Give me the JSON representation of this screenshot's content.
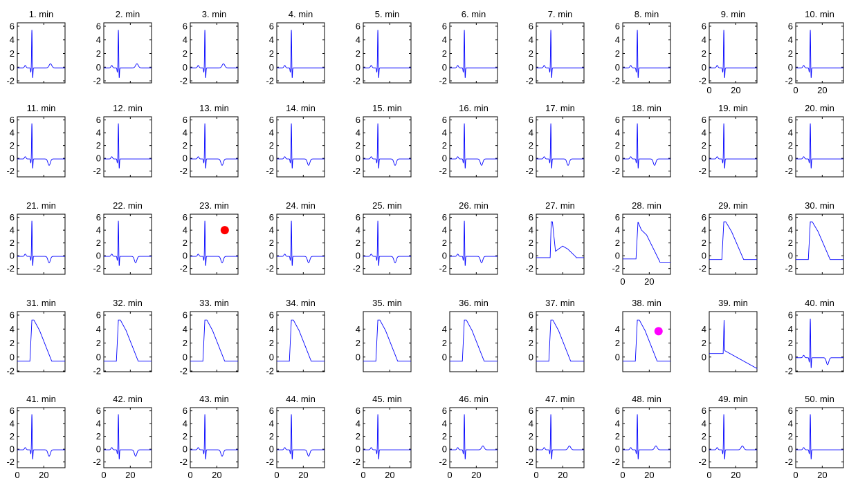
{
  "chart_data": {
    "type": "line",
    "layout": {
      "rows": 5,
      "cols": 10
    },
    "series_color": "#0000ff",
    "x_ticks": [
      0,
      20
    ],
    "xlim": [
      0,
      36
    ],
    "panels": [
      {
        "title": "1. min",
        "profile": "narrow",
        "tw": "up",
        "xticks": false
      },
      {
        "title": "2. min",
        "profile": "narrow",
        "tw": "up",
        "xticks": false
      },
      {
        "title": "3. min",
        "profile": "narrow",
        "tw": "up",
        "xticks": false
      },
      {
        "title": "4. min",
        "profile": "narrow",
        "tw": "flat",
        "xticks": false
      },
      {
        "title": "5. min",
        "profile": "narrow",
        "tw": "flat",
        "xticks": false
      },
      {
        "title": "6. min",
        "profile": "narrow",
        "tw": "flat",
        "xticks": false
      },
      {
        "title": "7. min",
        "profile": "narrow",
        "tw": "flat",
        "xticks": false
      },
      {
        "title": "8. min",
        "profile": "narrow",
        "tw": "flat",
        "xticks": false
      },
      {
        "title": "9. min",
        "profile": "narrow",
        "tw": "flat",
        "xticks": true
      },
      {
        "title": "10. min",
        "profile": "narrow",
        "tw": "flat",
        "xticks": true
      },
      {
        "title": "11. min",
        "profile": "narrow",
        "tw": "down",
        "xticks": false
      },
      {
        "title": "12. min",
        "profile": "narrow",
        "tw": "flat",
        "xticks": false
      },
      {
        "title": "13. min",
        "profile": "narrow",
        "tw": "down",
        "xticks": false
      },
      {
        "title": "14. min",
        "profile": "narrow",
        "tw": "down",
        "xticks": false
      },
      {
        "title": "15. min",
        "profile": "narrow",
        "tw": "down",
        "xticks": false
      },
      {
        "title": "16. min",
        "profile": "narrow",
        "tw": "down",
        "xticks": false
      },
      {
        "title": "17. min",
        "profile": "narrow",
        "tw": "down",
        "xticks": false
      },
      {
        "title": "18. min",
        "profile": "narrow",
        "tw": "down",
        "xticks": false
      },
      {
        "title": "19. min",
        "profile": "narrow",
        "tw": "flat",
        "xticks": false
      },
      {
        "title": "20. min",
        "profile": "narrow",
        "tw": "flat",
        "xticks": false
      },
      {
        "title": "21. min",
        "profile": "narrow",
        "tw": "down",
        "xticks": false
      },
      {
        "title": "22. min",
        "profile": "narrow",
        "tw": "down",
        "xticks": false
      },
      {
        "title": "23. min",
        "profile": "narrow",
        "tw": "down",
        "xticks": false,
        "marker": {
          "x": 26,
          "y": 4,
          "color": "#ff0000"
        }
      },
      {
        "title": "24. min",
        "profile": "narrow",
        "tw": "down",
        "xticks": false
      },
      {
        "title": "25. min",
        "profile": "narrow",
        "tw": "down",
        "xticks": false
      },
      {
        "title": "26. min",
        "profile": "narrow",
        "tw": "down",
        "xticks": false
      },
      {
        "title": "27. min",
        "profile": "st1",
        "tw": "flat",
        "xticks": false
      },
      {
        "title": "28. min",
        "profile": "st2",
        "tw": "flat",
        "xticks": true
      },
      {
        "title": "29. min",
        "profile": "wide",
        "tw": "flat",
        "xticks": false
      },
      {
        "title": "30. min",
        "profile": "wide",
        "tw": "flat",
        "xticks": false
      },
      {
        "title": "31. min",
        "profile": "wide",
        "tw": "flat",
        "xticks": false
      },
      {
        "title": "32. min",
        "profile": "wide",
        "tw": "flat",
        "xticks": false
      },
      {
        "title": "33. min",
        "profile": "wide",
        "tw": "flat",
        "xticks": false
      },
      {
        "title": "34. min",
        "profile": "wide",
        "tw": "flat",
        "xticks": false
      },
      {
        "title": "35. min",
        "profile": "wide",
        "tw": "flat",
        "xticks": false
      },
      {
        "title": "36. min",
        "profile": "wide",
        "tw": "flat",
        "xticks": false
      },
      {
        "title": "37. min",
        "profile": "wide",
        "tw": "flat",
        "xticks": false
      },
      {
        "title": "38. min",
        "profile": "wide",
        "tw": "flat",
        "xticks": false,
        "marker": {
          "x": 27,
          "y": 3.7,
          "color": "#ff00ff"
        }
      },
      {
        "title": "39. min",
        "profile": "st3",
        "tw": "flat",
        "xticks": false
      },
      {
        "title": "40. min",
        "profile": "narrow",
        "tw": "down",
        "xticks": false
      },
      {
        "title": "41. min",
        "profile": "narrow",
        "tw": "down",
        "xticks": true
      },
      {
        "title": "42. min",
        "profile": "narrow",
        "tw": "down",
        "xticks": true
      },
      {
        "title": "43. min",
        "profile": "narrow",
        "tw": "down",
        "xticks": true
      },
      {
        "title": "44. min",
        "profile": "narrow",
        "tw": "down",
        "xticks": true
      },
      {
        "title": "45. min",
        "profile": "narrow",
        "tw": "flat",
        "xticks": true
      },
      {
        "title": "46. min",
        "profile": "narrow",
        "tw": "up",
        "xticks": true
      },
      {
        "title": "47. min",
        "profile": "narrow",
        "tw": "up",
        "xticks": true
      },
      {
        "title": "48. min",
        "profile": "narrow",
        "tw": "up",
        "xticks": true
      },
      {
        "title": "49. min",
        "profile": "narrow",
        "tw": "up",
        "xticks": true
      },
      {
        "title": "50. min",
        "profile": "narrow",
        "tw": "flat",
        "xticks": true
      }
    ],
    "row_y": [
      {
        "ylim": [
          -2.3,
          6.5
        ],
        "ticks": [
          -2,
          0,
          2,
          4,
          6
        ]
      },
      {
        "ylim": [
          -2.9,
          6.5
        ],
        "ticks": [
          -2,
          0,
          2,
          4,
          6
        ]
      },
      {
        "ylim": [
          -2.9,
          6.5
        ],
        "ticks": [
          -2,
          0,
          2,
          4,
          6
        ]
      },
      {
        "ylim": [
          -2.1,
          6.5
        ],
        "ticks": [
          -2,
          0,
          2,
          4,
          6
        ]
      },
      {
        "ylim": [
          -2.9,
          6.5
        ],
        "ticks": [
          -2,
          0,
          2,
          4,
          6
        ]
      }
    ],
    "row_y_overrides": {
      "27": {
        "ticks": [
          -2,
          0,
          2,
          4,
          6
        ]
      },
      "28": {
        "ticks": [
          -2,
          0,
          2,
          4,
          6
        ]
      },
      "34": {
        "ticks": [
          0,
          2,
          4
        ]
      },
      "35": {
        "ticks": [
          0,
          2,
          4
        ]
      },
      "36": {
        "ticks": [
          0,
          2,
          4,
          6
        ]
      },
      "37": {
        "ticks": [
          0,
          2,
          4
        ]
      },
      "38": {
        "ticks": [
          0,
          2,
          4
        ]
      },
      "39": {
        "ticks": [
          -2,
          0,
          2,
          4,
          6
        ]
      }
    }
  }
}
